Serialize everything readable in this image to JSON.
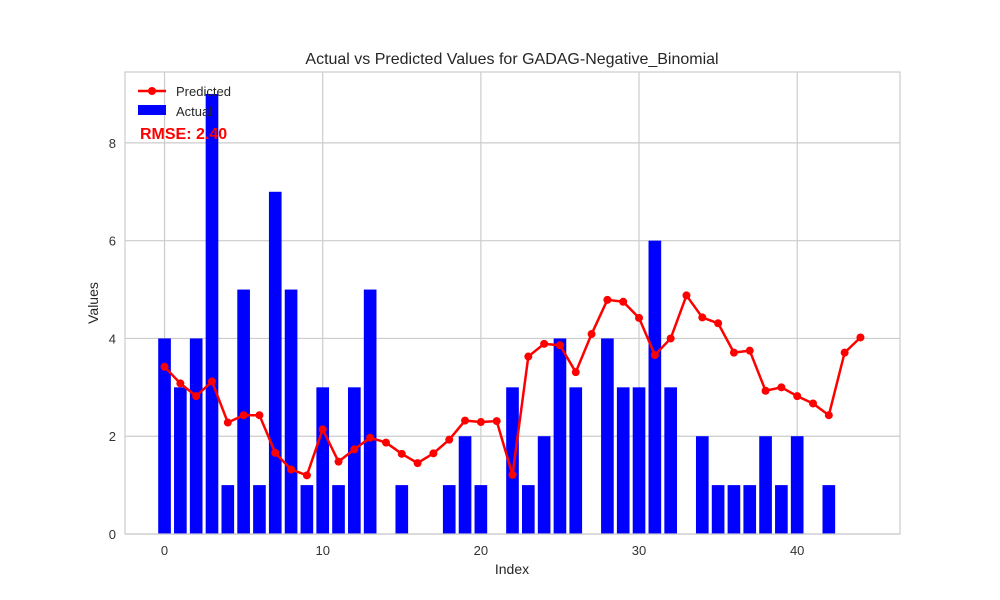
{
  "chart_data": {
    "type": "bar",
    "title": "Actual vs Predicted Values for GADAG-Negative_Binomial",
    "xlabel": "Index",
    "ylabel": "Values",
    "xlim": [
      -2.5,
      46.5
    ],
    "ylim": [
      0,
      9.45
    ],
    "xticks": [
      0,
      10,
      20,
      30,
      40
    ],
    "yticks": [
      0,
      2,
      4,
      6,
      8
    ],
    "grid": true,
    "legend": "top-left",
    "annotation": "RMSE: 2.40",
    "series": [
      {
        "name": "Actual",
        "type": "bar",
        "color": "#0000ff",
        "x": [
          0,
          1,
          2,
          3,
          4,
          5,
          6,
          7,
          8,
          9,
          10,
          11,
          12,
          13,
          14,
          15,
          16,
          17,
          18,
          19,
          20,
          21,
          22,
          23,
          24,
          25,
          26,
          27,
          28,
          29,
          30,
          31,
          32,
          33,
          34,
          35,
          36,
          37,
          38,
          39,
          40,
          41,
          42,
          43,
          44
        ],
        "values": [
          4,
          3,
          4,
          9,
          1,
          5,
          1,
          7,
          5,
          1,
          3,
          1,
          3,
          5,
          0,
          1,
          0,
          0,
          1,
          2,
          1,
          0,
          3,
          1,
          2,
          4,
          3,
          0,
          4,
          3,
          3,
          6,
          3,
          0,
          2,
          1,
          1,
          1,
          2,
          1,
          2,
          0,
          1,
          0,
          0
        ]
      },
      {
        "name": "Predicted",
        "type": "line",
        "color": "#ff0000",
        "x": [
          0,
          1,
          2,
          3,
          4,
          5,
          6,
          7,
          8,
          9,
          10,
          11,
          12,
          13,
          14,
          15,
          16,
          17,
          18,
          19,
          20,
          21,
          22,
          23,
          24,
          25,
          26,
          27,
          28,
          29,
          30,
          31,
          32,
          33,
          34,
          35,
          36,
          37,
          38,
          39,
          40,
          41,
          42,
          43,
          44
        ],
        "values": [
          3.42,
          3.08,
          2.82,
          3.12,
          2.28,
          2.43,
          2.43,
          1.66,
          1.32,
          1.2,
          2.14,
          1.48,
          1.73,
          1.97,
          1.87,
          1.64,
          1.45,
          1.65,
          1.93,
          2.32,
          2.29,
          2.31,
          1.21,
          3.63,
          3.89,
          3.86,
          3.31,
          4.09,
          4.79,
          4.75,
          4.42,
          3.66,
          4.0,
          4.88,
          4.43,
          4.31,
          3.71,
          3.75,
          2.93,
          3.0,
          2.82,
          2.67,
          2.43,
          3.71,
          4.02
        ]
      }
    ]
  }
}
